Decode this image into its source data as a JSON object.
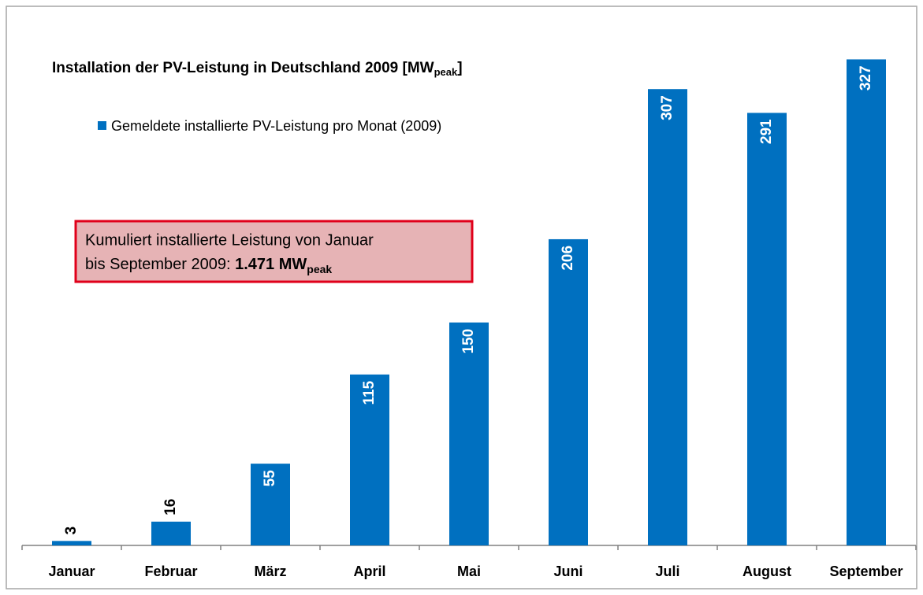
{
  "chart_data": {
    "type": "bar",
    "title": {
      "text": "Installation der PV-Leistung in Deutschland 2009 [MW",
      "sub": "peak",
      "end": "]"
    },
    "categories": [
      "Januar",
      "Februar",
      "März",
      "April",
      "Mai",
      "Juni",
      "Juli",
      "August",
      "September"
    ],
    "series": [
      {
        "name": "Gemeldete installierte PV-Leistung pro Monat (2009)",
        "color": "#0070c0",
        "values": [
          3,
          16,
          55,
          115,
          150,
          206,
          307,
          291,
          327
        ]
      }
    ],
    "ylim": [
      0,
      350
    ],
    "annotation": {
      "line1": "Kumuliert installierte Leistung von Januar",
      "line2": "bis September 2009: ",
      "bold": "1.471 MW",
      "sub": "peak"
    }
  }
}
